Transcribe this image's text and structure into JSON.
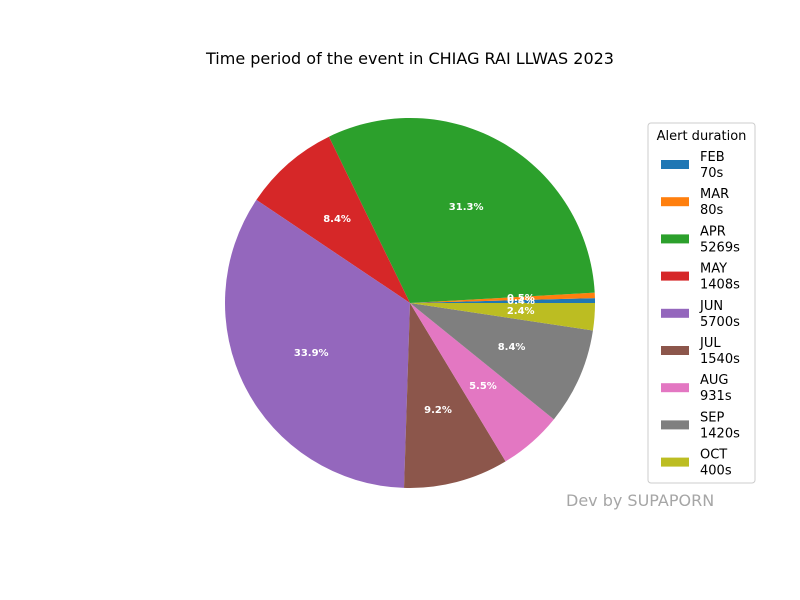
{
  "chart_data": {
    "type": "pie",
    "title": "Time period of the event in CHIAG RAI LLWAS 2023",
    "legend_title": "Alert duration",
    "legend_placement": "right",
    "start_angle_deg": 0,
    "direction": "counterclockwise",
    "slices": [
      {
        "month": "FEB",
        "value": 70,
        "duration": "70s",
        "pct_label": "0.4%",
        "color": "#1f77b4"
      },
      {
        "month": "MAR",
        "value": 80,
        "duration": "80s",
        "pct_label": "0.5%",
        "color": "#ff7f0e"
      },
      {
        "month": "APR",
        "value": 5269,
        "duration": "5269s",
        "pct_label": "31.3%",
        "color": "#2ca02c"
      },
      {
        "month": "MAY",
        "value": 1408,
        "duration": "1408s",
        "pct_label": "8.4%",
        "color": "#d62728"
      },
      {
        "month": "JUN",
        "value": 5700,
        "duration": "5700s",
        "pct_label": "33.9%",
        "color": "#9467bd"
      },
      {
        "month": "JUL",
        "value": 1540,
        "duration": "1540s",
        "pct_label": "9.2%",
        "color": "#8c564b"
      },
      {
        "month": "AUG",
        "value": 931,
        "duration": "931s",
        "pct_label": "5.5%",
        "color": "#e377c2"
      },
      {
        "month": "SEP",
        "value": 1420,
        "duration": "1420s",
        "pct_label": "8.4%",
        "color": "#7f7f7f"
      },
      {
        "month": "OCT",
        "value": 400,
        "duration": "400s",
        "pct_label": "2.4%",
        "color": "#bcbd22"
      }
    ]
  },
  "watermark": "Dev by SUPAPORN"
}
